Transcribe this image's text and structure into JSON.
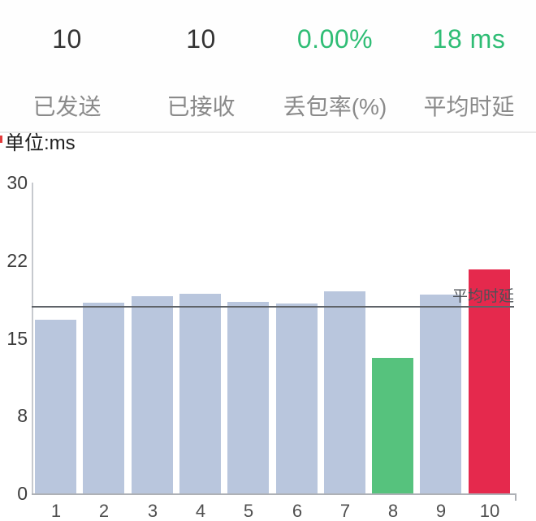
{
  "stats": {
    "items": [
      {
        "value": "10",
        "label": "已发送",
        "accent": false
      },
      {
        "value": "10",
        "label": "已接收",
        "accent": false
      },
      {
        "value": "0.00%",
        "label": "丢包率(%)",
        "accent": true
      },
      {
        "value": "18 ms",
        "label": "平均时延",
        "accent": true
      }
    ]
  },
  "unit_label": "单位:ms",
  "colors": {
    "accent_green": "#2fbd75",
    "bar_default": "#b9c6dd",
    "bar_min": "#56c27d",
    "bar_max": "#e5294d",
    "avg_line": "#5f6368",
    "axis_line": "#c6c9ce"
  },
  "chart_data": {
    "type": "bar",
    "title": "",
    "xlabel": "",
    "ylabel": "单位:ms",
    "categories": [
      "1",
      "2",
      "3",
      "4",
      "5",
      "6",
      "7",
      "8",
      "9",
      "10"
    ],
    "values": [
      16.8,
      18.4,
      19.0,
      19.3,
      18.5,
      18.3,
      19.5,
      13.1,
      19.2,
      21.6
    ],
    "bar_roles": [
      "default",
      "default",
      "default",
      "default",
      "default",
      "default",
      "default",
      "min",
      "default",
      "max"
    ],
    "yticks": [
      "30",
      "22",
      "15",
      "8",
      "0"
    ],
    "ylim": [
      0,
      30
    ],
    "grid": false,
    "legend_position": "none",
    "avg_line": {
      "value": 18,
      "label": "平均时延"
    }
  }
}
